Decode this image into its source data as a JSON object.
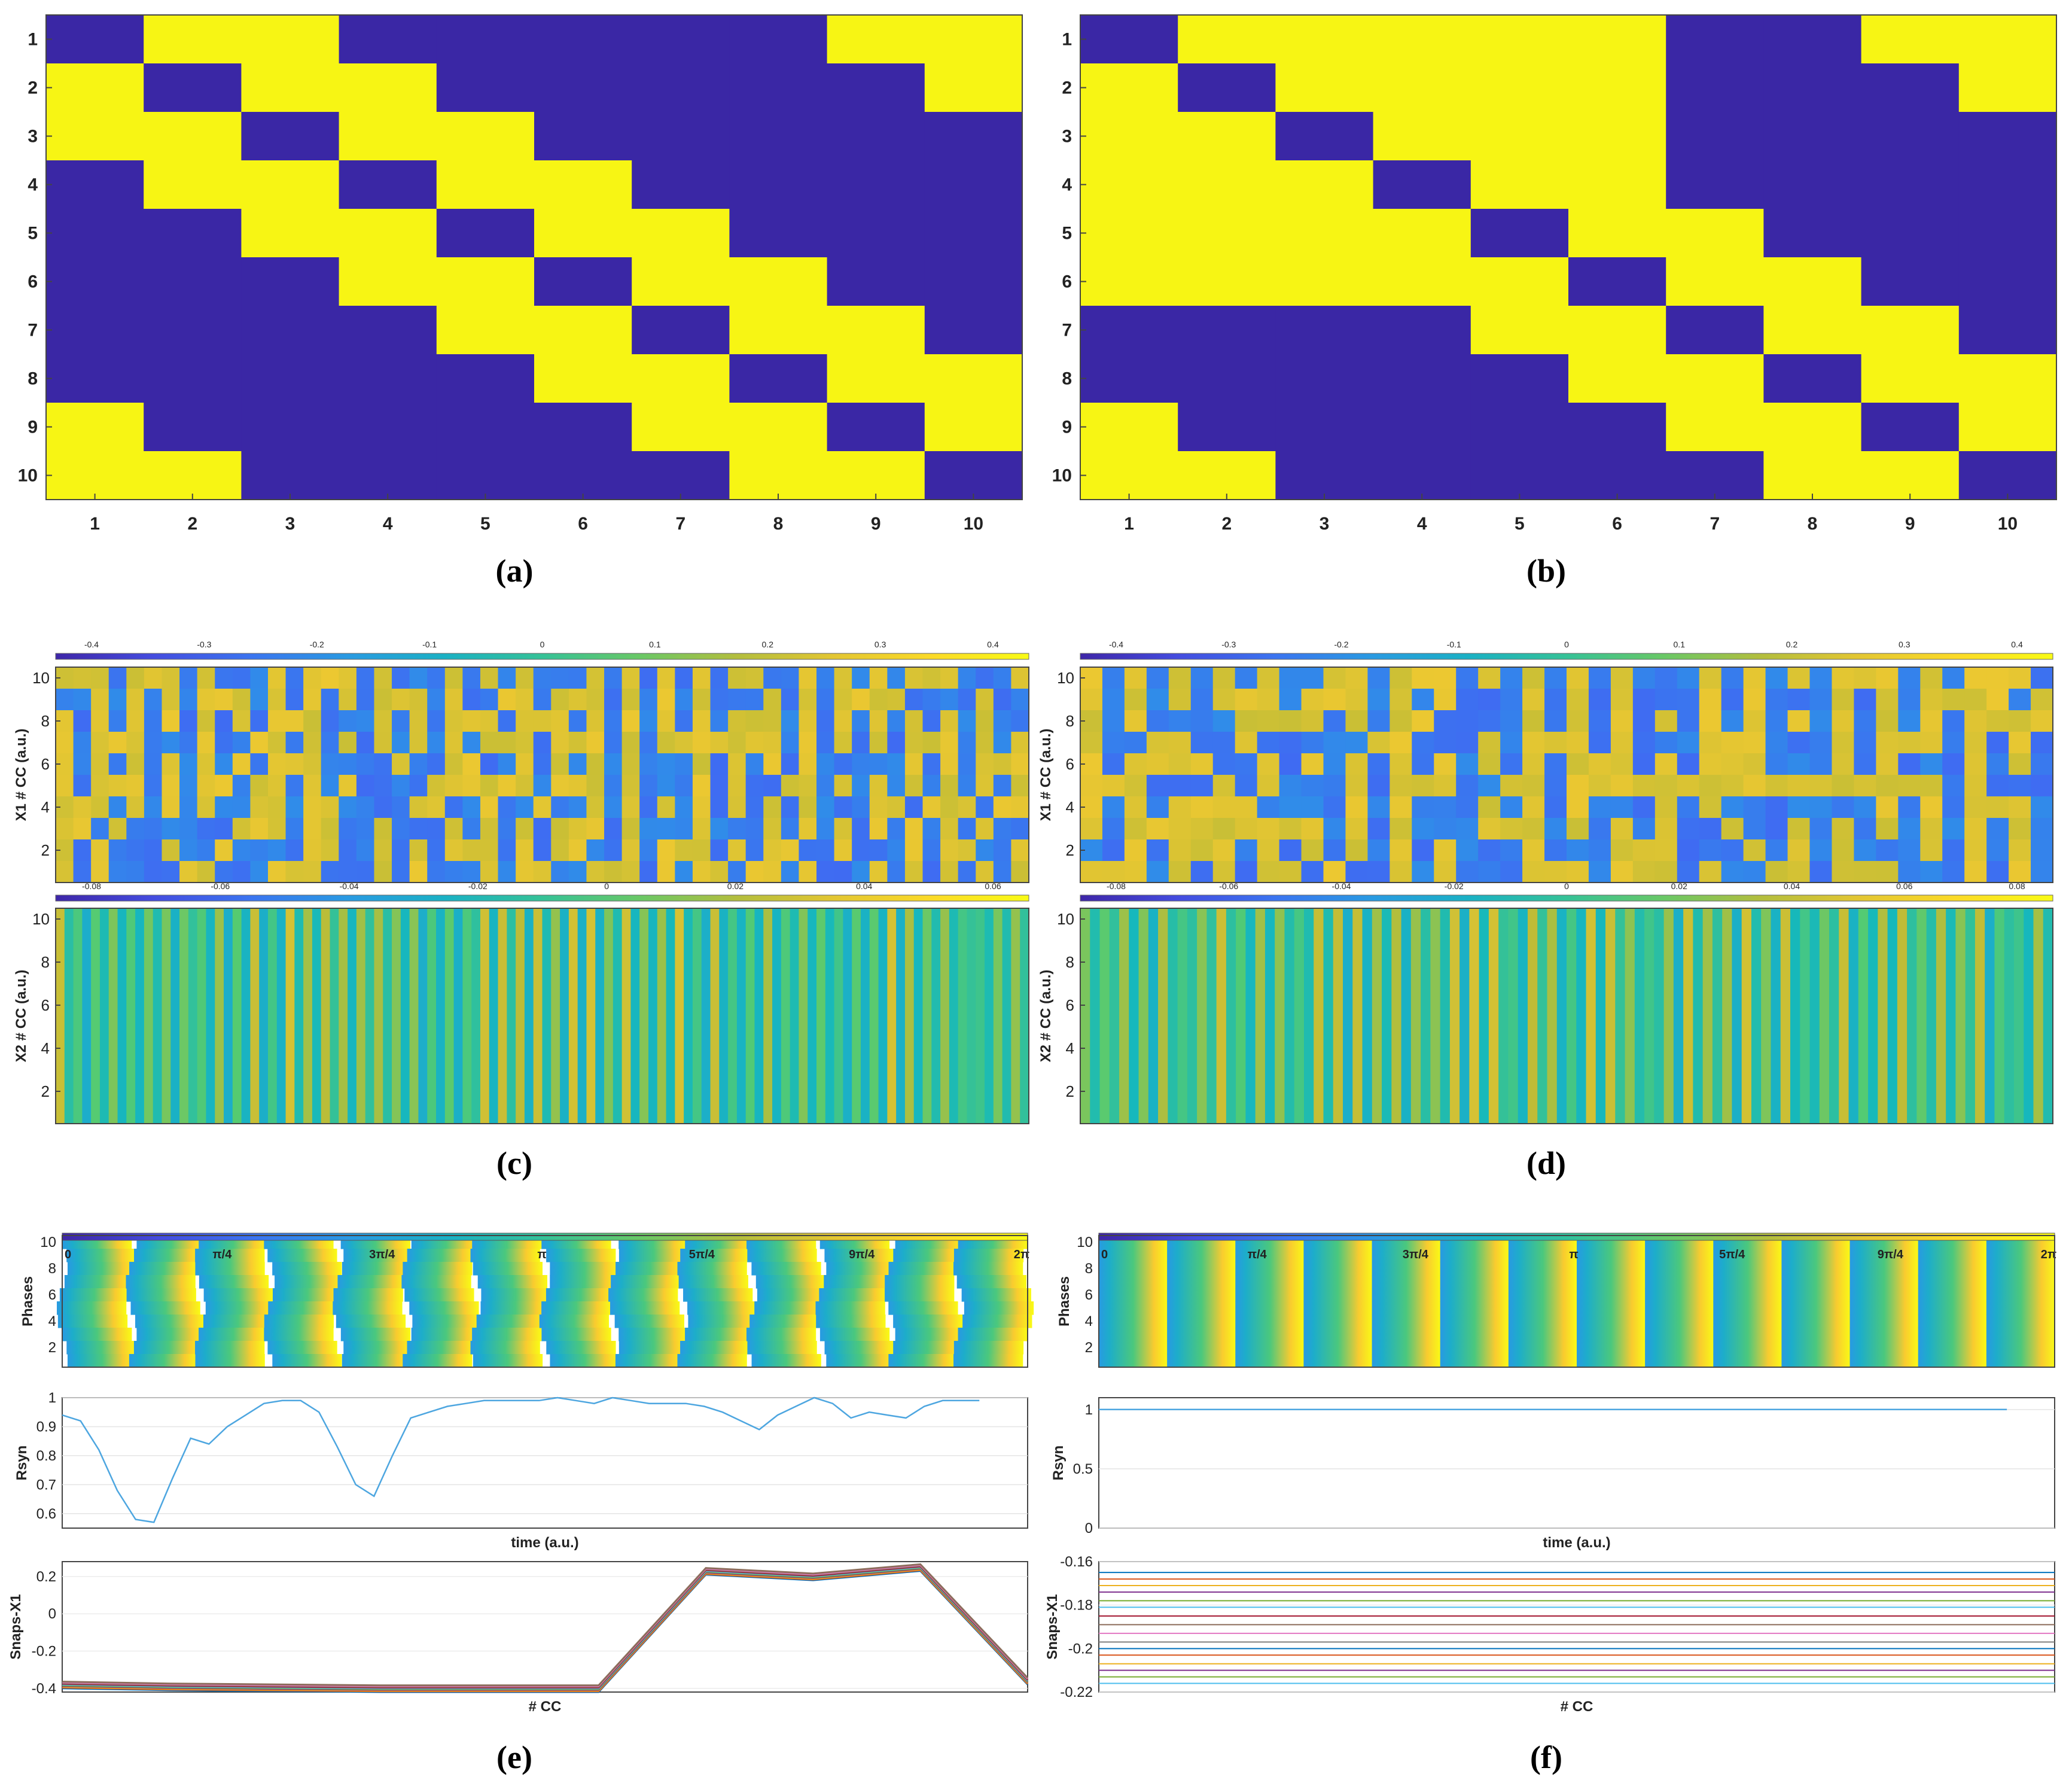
{
  "figure": {
    "panel_labels": [
      "(a)",
      "(b)",
      "(c)",
      "(d)",
      "(e)",
      "(f)"
    ]
  },
  "chart_data": [
    {
      "panel": "a",
      "type": "heatmap",
      "title": "",
      "xlabel": "",
      "ylabel": "",
      "x_ticks": [
        "1",
        "2",
        "3",
        "4",
        "5",
        "6",
        "7",
        "8",
        "9",
        "10"
      ],
      "y_ticks": [
        "1",
        "2",
        "3",
        "4",
        "5",
        "6",
        "7",
        "8",
        "9",
        "10"
      ],
      "colors": {
        "0": "#3a27a5",
        "1": "#f7f514"
      },
      "matrix": [
        [
          0,
          1,
          1,
          0,
          0,
          0,
          0,
          0,
          1,
          1
        ],
        [
          1,
          0,
          1,
          1,
          0,
          0,
          0,
          0,
          0,
          1
        ],
        [
          1,
          1,
          0,
          1,
          1,
          0,
          0,
          0,
          0,
          0
        ],
        [
          0,
          1,
          1,
          0,
          1,
          1,
          0,
          0,
          0,
          0
        ],
        [
          0,
          0,
          1,
          1,
          0,
          1,
          1,
          0,
          0,
          0
        ],
        [
          0,
          0,
          0,
          1,
          1,
          0,
          1,
          1,
          0,
          0
        ],
        [
          0,
          0,
          0,
          0,
          1,
          1,
          0,
          1,
          1,
          0
        ],
        [
          0,
          0,
          0,
          0,
          0,
          1,
          1,
          0,
          1,
          1
        ],
        [
          1,
          0,
          0,
          0,
          0,
          0,
          1,
          1,
          0,
          1
        ],
        [
          1,
          1,
          0,
          0,
          0,
          0,
          0,
          1,
          1,
          0
        ]
      ]
    },
    {
      "panel": "b",
      "type": "heatmap",
      "title": "",
      "xlabel": "",
      "ylabel": "",
      "x_ticks": [
        "1",
        "2",
        "3",
        "4",
        "5",
        "6",
        "7",
        "8",
        "9",
        "10"
      ],
      "y_ticks": [
        "1",
        "2",
        "3",
        "4",
        "5",
        "6",
        "7",
        "8",
        "9",
        "10"
      ],
      "colors": {
        "0": "#3a27a5",
        "1": "#f7f514"
      },
      "matrix": [
        [
          0,
          1,
          1,
          1,
          1,
          1,
          0,
          0,
          1,
          1
        ],
        [
          1,
          0,
          1,
          1,
          1,
          1,
          0,
          0,
          0,
          1
        ],
        [
          1,
          1,
          0,
          1,
          1,
          1,
          0,
          0,
          0,
          0
        ],
        [
          1,
          1,
          1,
          0,
          1,
          1,
          0,
          0,
          0,
          0
        ],
        [
          1,
          1,
          1,
          1,
          0,
          1,
          1,
          0,
          0,
          0
        ],
        [
          1,
          1,
          1,
          1,
          1,
          0,
          1,
          1,
          0,
          0
        ],
        [
          0,
          0,
          0,
          0,
          1,
          1,
          0,
          1,
          1,
          0
        ],
        [
          0,
          0,
          0,
          0,
          0,
          1,
          1,
          0,
          1,
          1
        ],
        [
          1,
          0,
          0,
          0,
          0,
          0,
          1,
          1,
          0,
          1
        ],
        [
          1,
          1,
          0,
          0,
          0,
          0,
          0,
          1,
          1,
          0
        ]
      ]
    },
    {
      "panel": "c",
      "type": "heatmap",
      "subplots": [
        {
          "ylabel": "X1 # CC (a.u.)",
          "y_ticks": [
            "2",
            "4",
            "6",
            "8",
            "10"
          ],
          "colorbar_ticks": [
            "-0.4",
            "-0.3",
            "-0.2",
            "-0.1",
            "0",
            "0.1",
            "0.2",
            "0.3",
            "0.4"
          ],
          "columns": 55
        },
        {
          "ylabel": "X2 # CC (a.u.)",
          "y_ticks": [
            "2",
            "4",
            "6",
            "8",
            "10"
          ],
          "colorbar_ticks": [
            "-0.08",
            "-0.06",
            "-0.04",
            "-0.02",
            "0",
            "0.02",
            "0.04",
            "0.06"
          ],
          "columns": 110
        }
      ]
    },
    {
      "panel": "d",
      "type": "heatmap",
      "subplots": [
        {
          "ylabel": "X1 # CC (a.u.)",
          "y_ticks": [
            "2",
            "4",
            "6",
            "8",
            "10"
          ],
          "colorbar_ticks": [
            "-0.4",
            "-0.3",
            "-0.2",
            "-0.1",
            "0",
            "0.1",
            "0.2",
            "0.3",
            "0.4"
          ],
          "columns": 44
        },
        {
          "ylabel": "X2 # CC (a.u.)",
          "y_ticks": [
            "2",
            "4",
            "6",
            "8",
            "10"
          ],
          "colorbar_ticks": [
            "-0.08",
            "-0.06",
            "-0.04",
            "-0.02",
            "0",
            "0.02",
            "0.04",
            "0.06",
            "0.08"
          ],
          "columns": 100
        }
      ]
    },
    {
      "panel": "e",
      "type": "heatmap+line",
      "phases": {
        "ylabel": "Phases",
        "y_ticks": [
          "2",
          "4",
          "6",
          "8",
          "10"
        ],
        "colorbar_ticks": [
          "0",
          "π/4",
          "3π/4",
          "π",
          "5π/4",
          "9π/4",
          "2π"
        ],
        "cycles": 14
      },
      "rsyn": {
        "type": "line",
        "ylabel": "Rsyn",
        "xlabel": "time (a.u.)",
        "ylim": [
          0.55,
          1.0
        ],
        "y_ticks": [
          "0.6",
          "0.7",
          "0.8",
          "0.9",
          "1"
        ],
        "x": [
          0,
          2,
          4,
          6,
          8,
          10,
          12,
          14,
          16,
          18,
          20,
          22,
          24,
          26,
          28,
          30,
          32,
          34,
          36,
          38,
          40,
          42,
          44,
          46,
          48,
          50,
          52,
          54,
          56,
          58,
          60,
          62,
          64,
          66,
          68,
          70,
          72,
          74,
          76,
          78,
          80,
          82,
          84,
          86,
          88,
          90,
          92,
          94,
          96,
          98,
          100
        ],
        "values": [
          0.94,
          0.92,
          0.82,
          0.68,
          0.58,
          0.57,
          0.72,
          0.86,
          0.84,
          0.9,
          0.94,
          0.98,
          0.99,
          0.99,
          0.95,
          0.83,
          0.7,
          0.66,
          0.8,
          0.93,
          0.95,
          0.97,
          0.98,
          0.99,
          0.99,
          0.99,
          0.99,
          1.0,
          0.99,
          0.98,
          1.0,
          0.99,
          0.98,
          0.98,
          0.98,
          0.97,
          0.95,
          0.92,
          0.89,
          0.94,
          0.97,
          1.0,
          0.98,
          0.93,
          0.95,
          0.94,
          0.93,
          0.97,
          0.99,
          0.99,
          0.99
        ]
      },
      "snaps": {
        "type": "line",
        "ylabel": "Snaps-X1",
        "xlabel": "# CC",
        "ylim": [
          -0.42,
          0.28
        ],
        "y_ticks": [
          "-0.4",
          "-0.2",
          "0",
          "0.2"
        ],
        "x": [
          1,
          2,
          3,
          4,
          5,
          6,
          7,
          8,
          9,
          10
        ],
        "values": [
          -0.38,
          -0.39,
          -0.395,
          -0.4,
          -0.4,
          -0.4,
          0.23,
          0.2,
          0.25,
          -0.36
        ],
        "series_count": 10
      }
    },
    {
      "panel": "f",
      "type": "heatmap+line",
      "phases": {
        "ylabel": "Phases",
        "y_ticks": [
          "2",
          "4",
          "6",
          "8",
          "10"
        ],
        "colorbar_ticks": [
          "0",
          "π/4",
          "3π/4",
          "π",
          "5π/4",
          "9π/4",
          "2π"
        ],
        "cycles": 14
      },
      "rsyn": {
        "type": "line",
        "ylabel": "Rsyn",
        "xlabel": "time (a.u.)",
        "ylim": [
          0,
          1.1
        ],
        "y_ticks": [
          "0",
          "0.5",
          "1"
        ],
        "x": [
          0,
          100
        ],
        "values": [
          1.0,
          1.0
        ]
      },
      "snaps": {
        "type": "line",
        "ylabel": "Snaps-X1",
        "xlabel": "# CC",
        "ylim": [
          -0.22,
          -0.16
        ],
        "y_ticks": [
          "-0.22",
          "-0.2",
          "-0.18",
          "-0.16"
        ],
        "levels": [
          -0.165,
          -0.168,
          -0.171,
          -0.174,
          -0.178,
          -0.181,
          -0.185,
          -0.189,
          -0.193,
          -0.197,
          -0.2,
          -0.203,
          -0.207,
          -0.21,
          -0.213,
          -0.216
        ]
      }
    }
  ]
}
